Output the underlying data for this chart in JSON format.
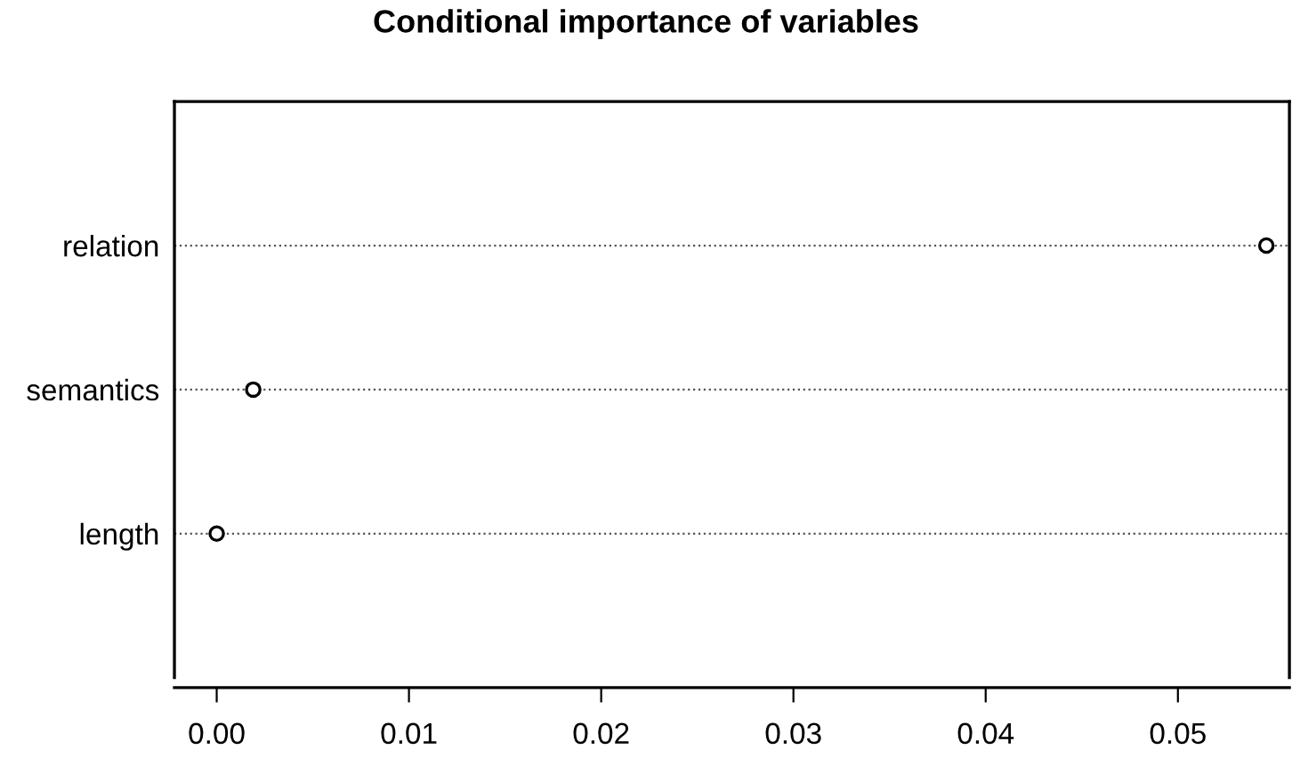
{
  "chart_data": {
    "type": "scatter",
    "orientation": "horizontal",
    "title": "Conditional importance of variables",
    "categories": [
      "relation",
      "semantics",
      "length"
    ],
    "values": [
      0.0546,
      0.0019,
      0.0
    ],
    "color": "#000000",
    "marker": "circle",
    "xlim": [
      -0.0022,
      0.0558
    ],
    "xticks": [
      {
        "value": 0,
        "label": "0.00"
      },
      {
        "value": 0.01,
        "label": "0.01"
      },
      {
        "value": 0.02,
        "label": "0.02"
      },
      {
        "value": 0.03,
        "label": "0.03"
      },
      {
        "value": 0.04,
        "label": "0.04"
      },
      {
        "value": 0.05,
        "label": "0.05"
      }
    ],
    "grid": "y",
    "line_style": "dotted"
  }
}
